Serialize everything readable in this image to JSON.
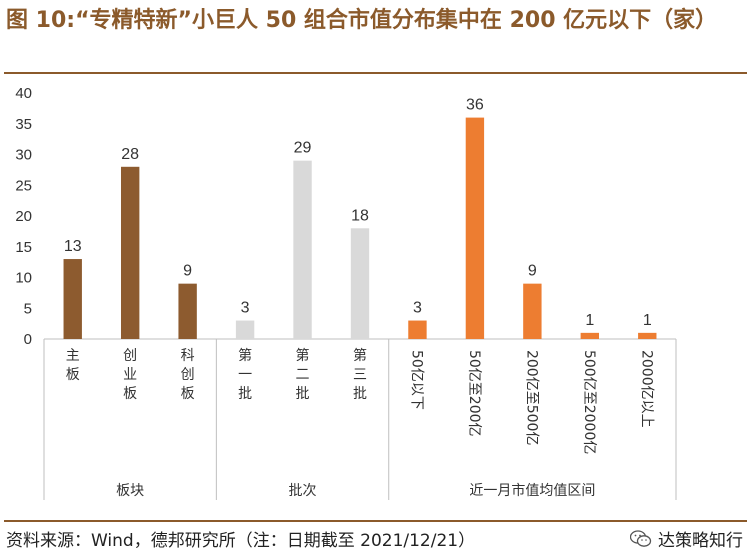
{
  "title": "图 10:“专精特新”小巨人 50 组合市值分布集中在 200 亿元以下（家）",
  "source": "资料来源：Wind，德邦研究所（注：日期截至 2021/12/21）",
  "watermark": "达策略知行",
  "colors": {
    "brown": "#8d5b2f",
    "gray": "#d9d9d9",
    "orange": "#ed7d31",
    "accent": "#8b5a2b"
  },
  "chart_data": {
    "type": "bar",
    "title": "“专精特新”小巨人 50 组合市值分布集中在 200 亿元以下（家）",
    "ylim": [
      0,
      40
    ],
    "yticks": [
      0,
      5,
      10,
      15,
      20,
      25,
      30,
      35,
      40
    ],
    "groups": [
      {
        "name": "板块",
        "color": "brown",
        "categories": [
          "主板",
          "创业板",
          "科创板"
        ],
        "values": [
          13,
          28,
          9
        ],
        "label_style": "vertical-cjk"
      },
      {
        "name": "批次",
        "color": "gray",
        "categories": [
          "第一批",
          "第二批",
          "第三批"
        ],
        "values": [
          3,
          29,
          18
        ],
        "label_style": "vertical-cjk"
      },
      {
        "name": "近一月市值均值区间",
        "color": "orange",
        "categories": [
          "50亿以下",
          "50亿至200亿",
          "200亿至500亿",
          "500亿至2000亿",
          "2000亿以上"
        ],
        "values": [
          3,
          36,
          9,
          1,
          1
        ],
        "label_style": "rotated"
      }
    ]
  }
}
